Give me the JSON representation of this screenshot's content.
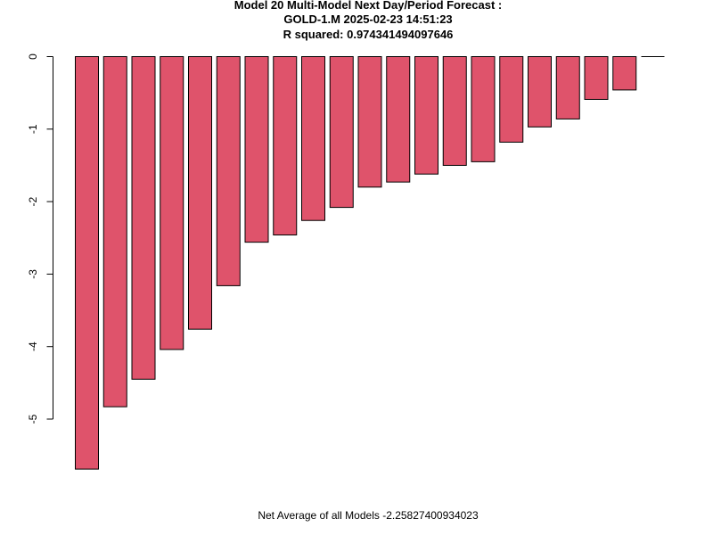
{
  "chart_data": {
    "type": "bar",
    "title_lines": [
      "Model  20  Multi-Model Next Day/Period Forecast :",
      "GOLD-1.M 2025-02-23 14:51:23",
      "R squared:  0.974341494097646"
    ],
    "xlabel": "Net Average of all Models  -2.25827400934023",
    "ylabel": "",
    "ylim": [
      -5.7,
      0
    ],
    "yticks": [
      0,
      -1,
      -2,
      -3,
      -4,
      -5
    ],
    "ytick_labels": [
      "0",
      "-1",
      "-2",
      "-3",
      "-4",
      "-5"
    ],
    "values": [
      -5.69,
      -4.83,
      -4.45,
      -4.04,
      -3.76,
      -3.16,
      -2.56,
      -2.46,
      -2.26,
      -2.08,
      -1.8,
      -1.73,
      -1.62,
      -1.5,
      -1.45,
      -1.18,
      -0.97,
      -0.86,
      -0.59,
      -0.46,
      0.0
    ],
    "bar_color": "#DF536B",
    "grid": false,
    "legend": "none"
  }
}
